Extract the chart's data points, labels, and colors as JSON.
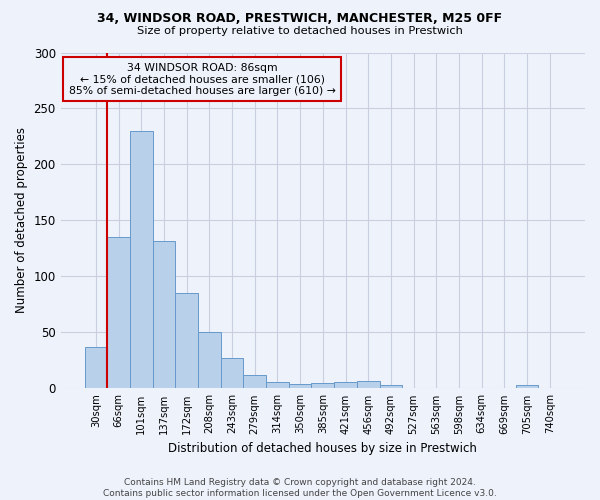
{
  "title": "34, WINDSOR ROAD, PRESTWICH, MANCHESTER, M25 0FF",
  "subtitle": "Size of property relative to detached houses in Prestwich",
  "xlabel": "Distribution of detached houses by size in Prestwich",
  "ylabel": "Number of detached properties",
  "footer_line1": "Contains HM Land Registry data © Crown copyright and database right 2024.",
  "footer_line2": "Contains public sector information licensed under the Open Government Licence v3.0.",
  "bin_labels": [
    "30sqm",
    "66sqm",
    "101sqm",
    "137sqm",
    "172sqm",
    "208sqm",
    "243sqm",
    "279sqm",
    "314sqm",
    "350sqm",
    "385sqm",
    "421sqm",
    "456sqm",
    "492sqm",
    "527sqm",
    "563sqm",
    "598sqm",
    "634sqm",
    "669sqm",
    "705sqm",
    "740sqm"
  ],
  "bar_values": [
    37,
    135,
    230,
    132,
    85,
    50,
    27,
    12,
    6,
    4,
    5,
    6,
    7,
    3,
    0,
    0,
    0,
    0,
    0,
    3,
    0
  ],
  "bar_color": "#b8d0ea",
  "bar_edge_color": "#6699cc",
  "background_color": "#eef2fb",
  "grid_color": "#c8cfe0",
  "annotation_text": "34 WINDSOR ROAD: 86sqm\n← 15% of detached houses are smaller (106)\n85% of semi-detached houses are larger (610) →",
  "annotation_box_edge_color": "#cc0000",
  "vline_color": "#cc0000",
  "vline_position": 0.575,
  "ylim": [
    0,
    300
  ],
  "yticks": [
    0,
    50,
    100,
    150,
    200,
    250,
    300
  ]
}
